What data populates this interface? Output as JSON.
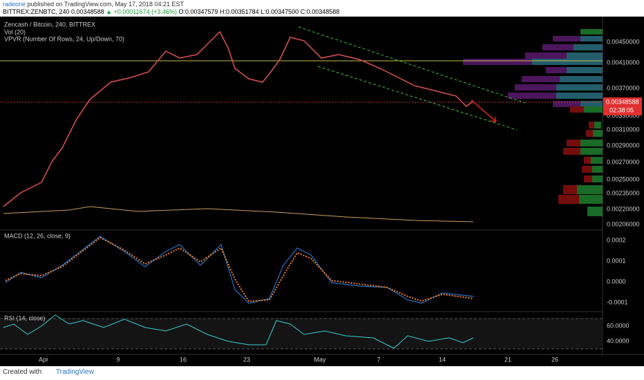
{
  "header": {
    "publisher": "radeone",
    "published": "published on TradingView.com, May 17, 2018 04:21 EST",
    "symbol": "BITTREX:ZENBTC, 240",
    "last": "0.00348588",
    "change": "▲ +0.00011674 (+3.46%)",
    "open": "O:0.00347579",
    "high": "H:0.00351784",
    "low": "L:0.00347500",
    "close": "C:0.00348588"
  },
  "legend": {
    "main": "Zencash / Bitcoin, 240, BITTREX",
    "volume": "Vol (20)",
    "vpvr": "VPVR (Number Of Rows, 24, Up/Down, 70)",
    "macd": "MACD (12, 26, close, 9)",
    "rsi": "RSI (14, close)"
  },
  "price_axis": [
    "0.00450000",
    "0.00410000",
    "0.00370000",
    "0.00330000",
    "0.00310000",
    "0.00290000",
    "0.00270000",
    "0.00250000",
    "0.00235000",
    "0.00220000",
    "0.00206000"
  ],
  "current_price": "0.00348588",
  "countdown": "02:38:05",
  "macd_axis": [
    "0.0002",
    "0.0001",
    "0.0000",
    "-0.0001"
  ],
  "rsi_axis": [
    "60.0000",
    "40.0000"
  ],
  "date_axis": [
    "Apr",
    "9",
    "16",
    "23",
    "May",
    "7",
    "14",
    "21",
    "26"
  ],
  "footer": {
    "created": "Created with",
    "brand": "TradingView"
  }
}
